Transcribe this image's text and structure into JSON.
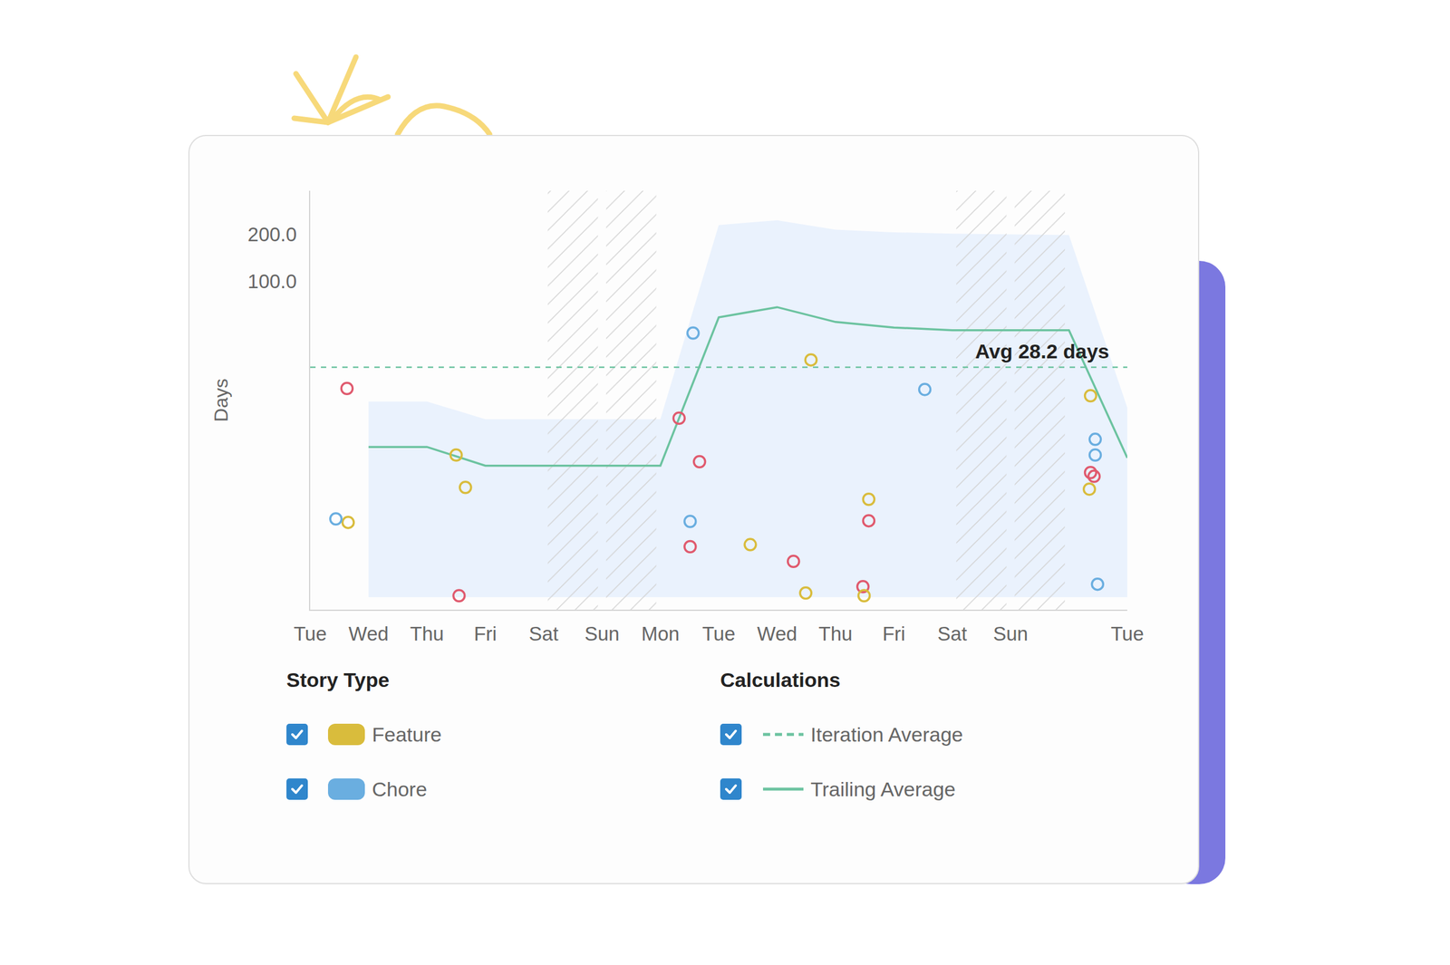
{
  "chart_data": {
    "type": "scatter",
    "y_label": "Days",
    "log": "y",
    "grid": false,
    "legend": "bottom",
    "legend_headings": [
      "Story Type",
      "Calculations"
    ],
    "xlim": [
      0,
      14
    ],
    "xticks": [
      {
        "value": 0,
        "label": "Tue"
      },
      {
        "value": 1,
        "label": "Wed"
      },
      {
        "value": 2,
        "label": "Thu"
      },
      {
        "value": 3,
        "label": "Fri"
      },
      {
        "value": 4,
        "label": "Sat"
      },
      {
        "value": 5,
        "label": "Sun"
      },
      {
        "value": 6,
        "label": "Mon"
      },
      {
        "value": 7,
        "label": "Tue"
      },
      {
        "value": 8,
        "label": "Wed"
      },
      {
        "value": 9,
        "label": "Thu"
      },
      {
        "value": 10,
        "label": "Fri"
      },
      {
        "value": 11,
        "label": "Sat"
      },
      {
        "value": 12,
        "label": "Sun"
      },
      {
        "value": 14,
        "label": "Tue"
      }
    ],
    "ylim": [
      0.79,
      380
    ],
    "yticks": [
      {
        "value": 100,
        "label": "100.0"
      },
      {
        "value": 200,
        "label": "200.0"
      }
    ],
    "weekends": [
      4,
      5,
      11,
      12
    ],
    "series": [
      {
        "type": "band",
        "color": "#eaf2fd",
        "x": [
          1,
          2,
          3,
          6,
          7,
          8,
          9,
          10,
          11,
          12,
          13,
          14
        ],
        "upper": [
          17.0,
          17.0,
          13.1,
          13.1,
          229,
          246,
          214,
          206,
          202,
          200,
          198,
          15.5
        ],
        "lower": [
          0.95,
          0.95,
          0.95,
          0.95,
          0.95,
          0.95,
          0.95,
          0.95,
          0.95,
          0.95,
          0.95,
          0.95
        ]
      },
      {
        "name": "Iteration Average",
        "type": "hline",
        "color": "#6cc3a0",
        "line_style": "dashed",
        "value": 28.2,
        "label": "Avg 28.2 days"
      },
      {
        "name": "Trailing Average",
        "type": "line",
        "color": "#6cc3a0",
        "line_style": "solid",
        "x": [
          1,
          2,
          3,
          6,
          7,
          8,
          9,
          10,
          11,
          12,
          13,
          14
        ],
        "values": [
          8.7,
          8.7,
          6.6,
          6.6,
          58.8,
          68.3,
          54.9,
          50.6,
          48.6,
          48.6,
          48.6,
          7.4
        ]
      },
      {
        "type": "scatter",
        "color": "#e05a6e",
        "marker": "circle-open",
        "x": [
          0.63,
          2.55,
          6.32,
          6.67,
          6.51,
          8.28,
          9.47,
          9.57,
          13.37,
          13.43
        ],
        "values": [
          20.6,
          0.97,
          13.3,
          7.0,
          2.0,
          1.61,
          1.11,
          2.93,
          5.96,
          5.64
        ]
      },
      {
        "name": "Feature",
        "type": "scatter",
        "color": "#d9bc3c",
        "marker": "circle-open",
        "x": [
          0.65,
          2.5,
          2.66,
          7.54,
          8.58,
          8.49,
          9.49,
          9.57,
          13.37,
          13.35
        ],
        "values": [
          2.86,
          7.72,
          4.79,
          2.06,
          31.4,
          1.01,
          0.97,
          4.02,
          18.5,
          4.67
        ]
      },
      {
        "name": "Chore",
        "type": "scatter",
        "color": "#6aaee0",
        "marker": "circle-open",
        "x": [
          0.44,
          6.56,
          6.51,
          10.53,
          13.45,
          13.45,
          13.49
        ],
        "values": [
          3.01,
          46.6,
          2.9,
          20.3,
          9.73,
          7.72,
          1.15
        ]
      }
    ]
  }
}
